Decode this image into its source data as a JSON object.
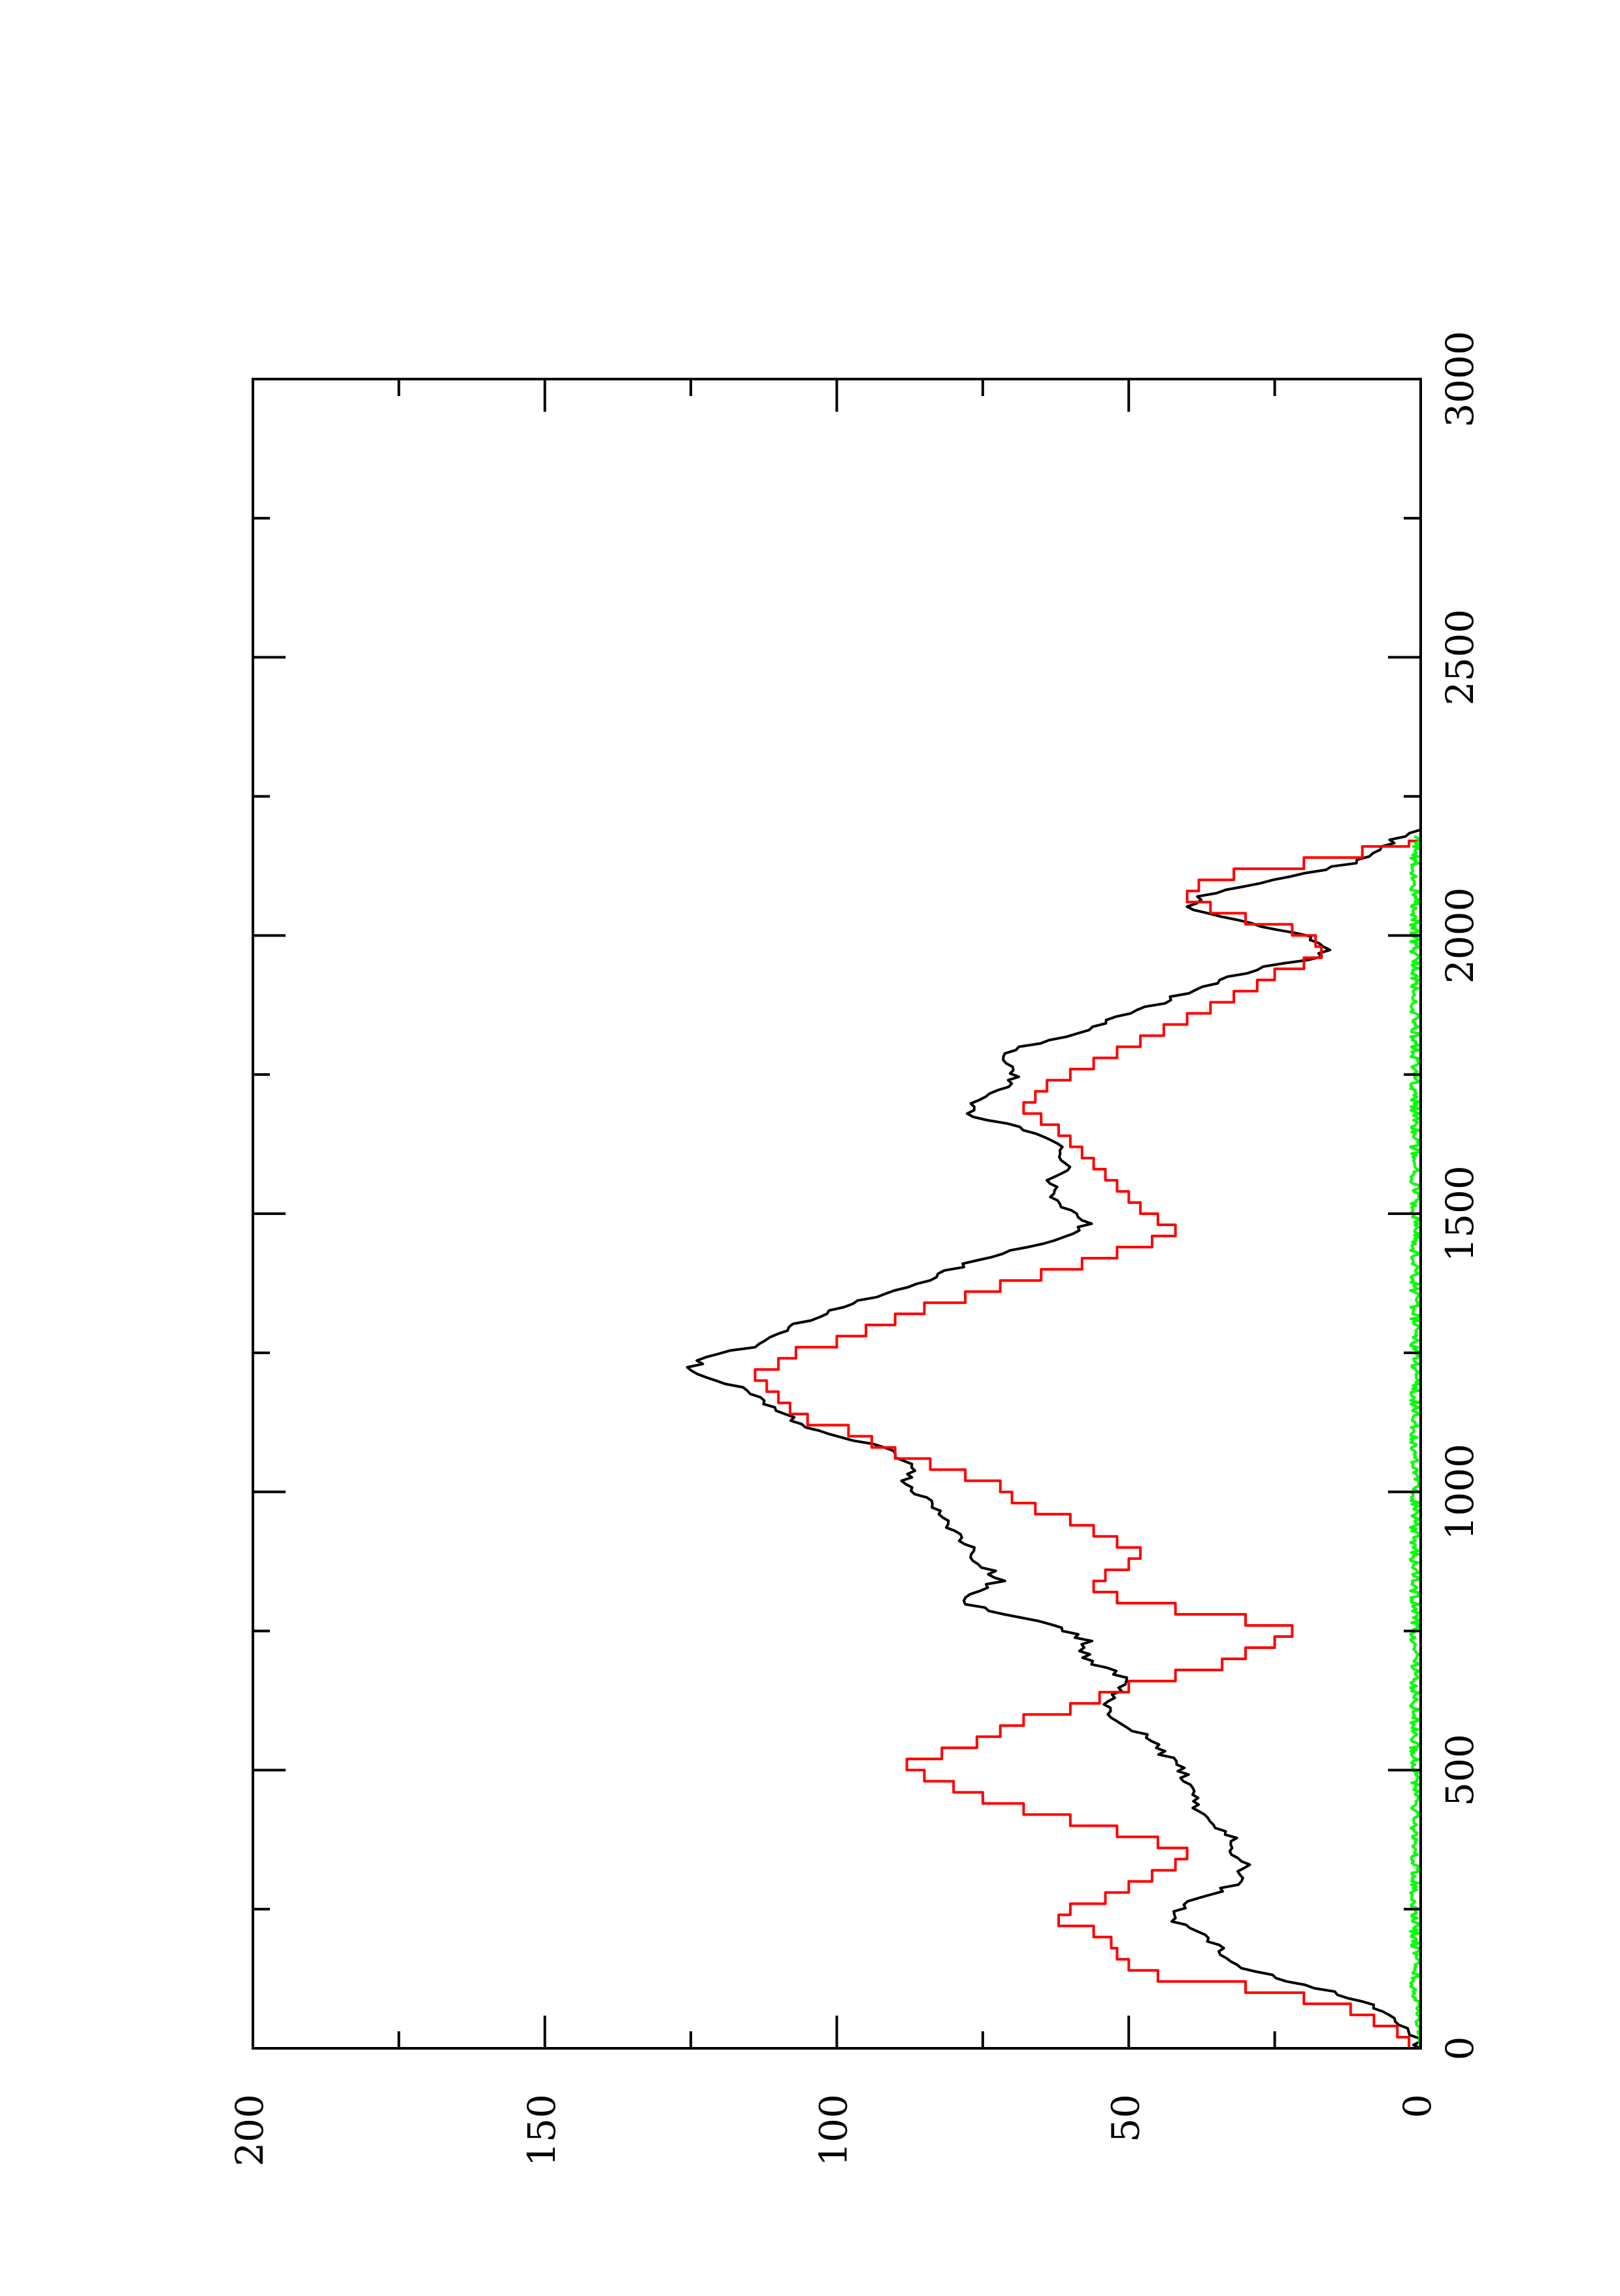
{
  "chart_data": {
    "type": "line",
    "orientation": "rotated-90-clockwise",
    "title": "",
    "xlabel": "",
    "ylabel": "",
    "xlim": [
      0,
      3000
    ],
    "ylim": [
      0,
      200
    ],
    "x_ticks": [
      0,
      500,
      1000,
      1500,
      2000,
      2500,
      3000
    ],
    "y_ticks": [
      0,
      50,
      100,
      150,
      200
    ],
    "grid": false,
    "legend": "none",
    "series": [
      {
        "color": "#000000",
        "style": "jagged",
        "points": [
          [
            0,
            0
          ],
          [
            20,
            1
          ],
          [
            40,
            3
          ],
          [
            60,
            5
          ],
          [
            80,
            9
          ],
          [
            100,
            15
          ],
          [
            120,
            22
          ],
          [
            140,
            29
          ],
          [
            160,
            33
          ],
          [
            180,
            34
          ],
          [
            200,
            37
          ],
          [
            230,
            42
          ],
          [
            260,
            41
          ],
          [
            280,
            35
          ],
          [
            300,
            31
          ],
          [
            330,
            30
          ],
          [
            350,
            33
          ],
          [
            380,
            32
          ],
          [
            400,
            35
          ],
          [
            430,
            38
          ],
          [
            460,
            39
          ],
          [
            500,
            41
          ],
          [
            530,
            44
          ],
          [
            560,
            47
          ],
          [
            600,
            53
          ],
          [
            620,
            55
          ],
          [
            640,
            52
          ],
          [
            660,
            50
          ],
          [
            680,
            53
          ],
          [
            700,
            58
          ],
          [
            730,
            57
          ],
          [
            760,
            62
          ],
          [
            780,
            72
          ],
          [
            800,
            78
          ],
          [
            820,
            77
          ],
          [
            840,
            72
          ],
          [
            860,
            74
          ],
          [
            880,
            76
          ],
          [
            900,
            77
          ],
          [
            930,
            80
          ],
          [
            960,
            82
          ],
          [
            990,
            85
          ],
          [
            1020,
            88
          ],
          [
            1050,
            87
          ],
          [
            1080,
            92
          ],
          [
            1100,
            100
          ],
          [
            1120,
            106
          ],
          [
            1150,
            111
          ],
          [
            1180,
            115
          ],
          [
            1200,
            120
          ],
          [
            1220,
            125
          ],
          [
            1240,
            123
          ],
          [
            1260,
            115
          ],
          [
            1280,
            112
          ],
          [
            1300,
            107
          ],
          [
            1330,
            100
          ],
          [
            1360,
            90
          ],
          [
            1380,
            85
          ],
          [
            1400,
            80
          ],
          [
            1420,
            75
          ],
          [
            1440,
            68
          ],
          [
            1460,
            60
          ],
          [
            1480,
            57
          ],
          [
            1500,
            60
          ],
          [
            1520,
            63
          ],
          [
            1540,
            62
          ],
          [
            1560,
            63
          ],
          [
            1580,
            60
          ],
          [
            1600,
            62
          ],
          [
            1620,
            61
          ],
          [
            1640,
            64
          ],
          [
            1660,
            70
          ],
          [
            1680,
            78
          ],
          [
            1700,
            76
          ],
          [
            1720,
            72
          ],
          [
            1740,
            70
          ],
          [
            1760,
            69
          ],
          [
            1780,
            72
          ],
          [
            1800,
            68
          ],
          [
            1820,
            60
          ],
          [
            1840,
            55
          ],
          [
            1860,
            50
          ],
          [
            1880,
            44
          ],
          [
            1900,
            40
          ],
          [
            1920,
            34
          ],
          [
            1940,
            28
          ],
          [
            1960,
            18
          ],
          [
            1980,
            16
          ],
          [
            2000,
            20
          ],
          [
            2020,
            28
          ],
          [
            2050,
            40
          ],
          [
            2070,
            38
          ],
          [
            2090,
            30
          ],
          [
            2110,
            20
          ],
          [
            2130,
            12
          ],
          [
            2150,
            7
          ],
          [
            2170,
            5
          ],
          [
            2180,
            2
          ],
          [
            2190,
            0
          ]
        ]
      },
      {
        "color": "#ff0000",
        "style": "step",
        "points": [
          [
            0,
            2
          ],
          [
            20,
            4
          ],
          [
            40,
            8
          ],
          [
            60,
            12
          ],
          [
            80,
            20
          ],
          [
            100,
            30
          ],
          [
            120,
            45
          ],
          [
            140,
            50
          ],
          [
            160,
            52
          ],
          [
            180,
            53
          ],
          [
            200,
            56
          ],
          [
            220,
            62
          ],
          [
            240,
            60
          ],
          [
            260,
            54
          ],
          [
            280,
            50
          ],
          [
            300,
            46
          ],
          [
            320,
            42
          ],
          [
            340,
            40
          ],
          [
            360,
            45
          ],
          [
            380,
            52
          ],
          [
            400,
            60
          ],
          [
            420,
            68
          ],
          [
            440,
            75
          ],
          [
            460,
            80
          ],
          [
            480,
            85
          ],
          [
            500,
            88
          ],
          [
            520,
            82
          ],
          [
            540,
            76
          ],
          [
            560,
            72
          ],
          [
            580,
            68
          ],
          [
            600,
            60
          ],
          [
            620,
            55
          ],
          [
            640,
            50
          ],
          [
            660,
            42
          ],
          [
            680,
            34
          ],
          [
            700,
            30
          ],
          [
            720,
            25
          ],
          [
            740,
            22
          ],
          [
            760,
            30
          ],
          [
            780,
            42
          ],
          [
            800,
            52
          ],
          [
            820,
            56
          ],
          [
            840,
            54
          ],
          [
            860,
            50
          ],
          [
            880,
            48
          ],
          [
            900,
            52
          ],
          [
            920,
            56
          ],
          [
            940,
            60
          ],
          [
            960,
            66
          ],
          [
            980,
            70
          ],
          [
            1000,
            72
          ],
          [
            1020,
            78
          ],
          [
            1040,
            84
          ],
          [
            1060,
            90
          ],
          [
            1080,
            94
          ],
          [
            1100,
            98
          ],
          [
            1120,
            105
          ],
          [
            1140,
            108
          ],
          [
            1160,
            110
          ],
          [
            1180,
            112
          ],
          [
            1200,
            114
          ],
          [
            1220,
            110
          ],
          [
            1240,
            107
          ],
          [
            1260,
            100
          ],
          [
            1280,
            95
          ],
          [
            1300,
            90
          ],
          [
            1320,
            85
          ],
          [
            1340,
            78
          ],
          [
            1360,
            72
          ],
          [
            1380,
            65
          ],
          [
            1400,
            58
          ],
          [
            1420,
            52
          ],
          [
            1440,
            46
          ],
          [
            1460,
            42
          ],
          [
            1480,
            45
          ],
          [
            1500,
            48
          ],
          [
            1520,
            50
          ],
          [
            1540,
            52
          ],
          [
            1560,
            54
          ],
          [
            1580,
            56
          ],
          [
            1600,
            58
          ],
          [
            1620,
            60
          ],
          [
            1640,
            62
          ],
          [
            1660,
            65
          ],
          [
            1680,
            68
          ],
          [
            1700,
            66
          ],
          [
            1720,
            64
          ],
          [
            1740,
            60
          ],
          [
            1760,
            56
          ],
          [
            1780,
            52
          ],
          [
            1800,
            48
          ],
          [
            1820,
            44
          ],
          [
            1840,
            40
          ],
          [
            1860,
            36
          ],
          [
            1880,
            32
          ],
          [
            1900,
            28
          ],
          [
            1920,
            25
          ],
          [
            1940,
            20
          ],
          [
            1960,
            17
          ],
          [
            1980,
            18
          ],
          [
            2000,
            22
          ],
          [
            2020,
            30
          ],
          [
            2040,
            36
          ],
          [
            2060,
            40
          ],
          [
            2080,
            38
          ],
          [
            2100,
            32
          ],
          [
            2120,
            20
          ],
          [
            2140,
            10
          ],
          [
            2160,
            2
          ],
          [
            2170,
            0
          ]
        ]
      },
      {
        "color": "#00ff00",
        "style": "noise",
        "points": [
          [
            0,
            0
          ],
          [
            100,
            1
          ],
          [
            200,
            1
          ],
          [
            300,
            1
          ],
          [
            400,
            1
          ],
          [
            500,
            1
          ],
          [
            600,
            1
          ],
          [
            700,
            1
          ],
          [
            800,
            1
          ],
          [
            900,
            1
          ],
          [
            1000,
            1
          ],
          [
            1100,
            1
          ],
          [
            1200,
            1
          ],
          [
            1300,
            1
          ],
          [
            1400,
            1
          ],
          [
            1500,
            1
          ],
          [
            1600,
            1
          ],
          [
            1700,
            1
          ],
          [
            1800,
            1
          ],
          [
            1900,
            1
          ],
          [
            2000,
            1
          ],
          [
            2100,
            1
          ],
          [
            2180,
            1
          ]
        ]
      }
    ]
  }
}
